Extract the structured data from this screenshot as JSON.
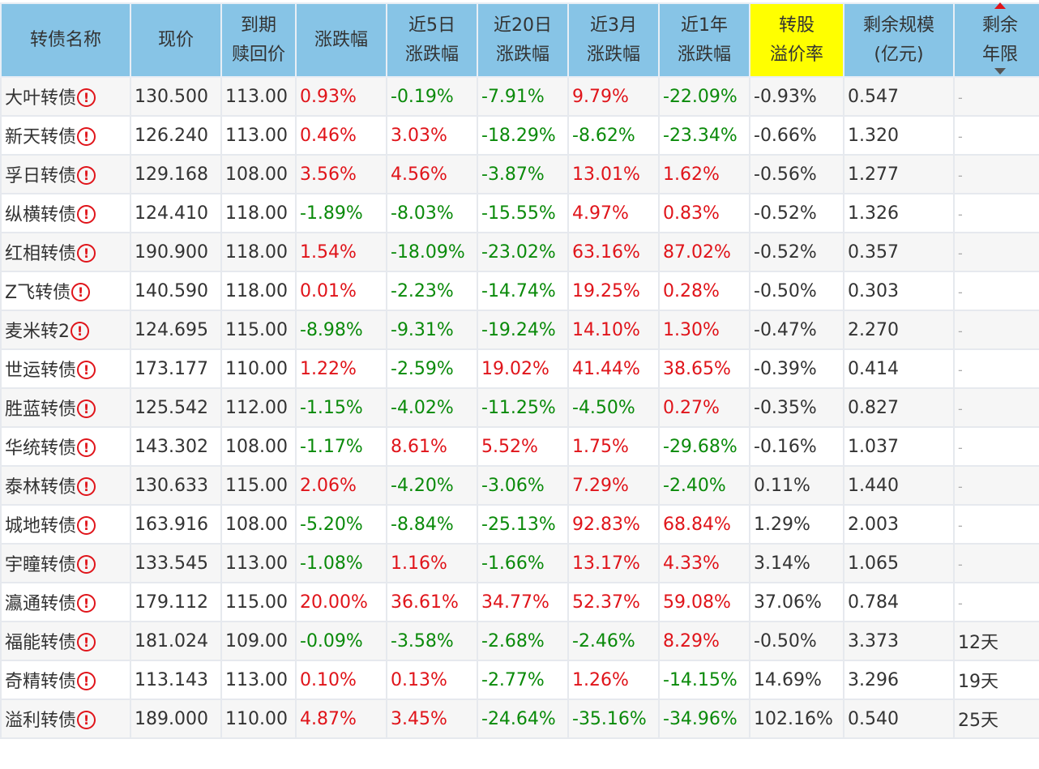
{
  "headers": [
    "转债名称",
    "现价",
    "到期\n赎回价",
    "涨跌幅",
    "近5日\n涨跌幅",
    "近20日\n涨跌幅",
    "近3月\n涨跌幅",
    "近1年\n涨跌幅",
    "转股\n溢价率",
    "剩余规模\n(亿元)",
    "剩余\n年限"
  ],
  "highlight_color": "#ffff00",
  "warn_icon": "!",
  "rows": [
    [
      "大叶转债",
      "130.500",
      "113.00",
      "0.93%",
      "-0.19%",
      "-7.91%",
      "9.79%",
      "-22.09%",
      "-0.93%",
      "0.547",
      "-"
    ],
    [
      "新天转债",
      "126.240",
      "113.00",
      "0.46%",
      "3.03%",
      "-18.29%",
      "-8.62%",
      "-23.34%",
      "-0.66%",
      "1.320",
      "-"
    ],
    [
      "孚日转债",
      "129.168",
      "108.00",
      "3.56%",
      "4.56%",
      "-3.87%",
      "13.01%",
      "1.62%",
      "-0.56%",
      "1.277",
      "-"
    ],
    [
      "纵横转债",
      "124.410",
      "118.00",
      "-1.89%",
      "-8.03%",
      "-15.55%",
      "4.97%",
      "0.83%",
      "-0.52%",
      "1.326",
      "-"
    ],
    [
      "红相转债",
      "190.900",
      "118.00",
      "1.54%",
      "-18.09%",
      "-23.02%",
      "63.16%",
      "87.02%",
      "-0.52%",
      "0.357",
      "-"
    ],
    [
      "Z飞转债",
      "140.590",
      "118.00",
      "0.01%",
      "-2.23%",
      "-14.74%",
      "19.25%",
      "0.28%",
      "-0.50%",
      "0.303",
      "-"
    ],
    [
      "麦米转2",
      "124.695",
      "115.00",
      "-8.98%",
      "-9.31%",
      "-19.24%",
      "14.10%",
      "1.30%",
      "-0.47%",
      "2.270",
      "-"
    ],
    [
      "世运转债",
      "173.177",
      "110.00",
      "1.22%",
      "-2.59%",
      "19.02%",
      "41.44%",
      "38.65%",
      "-0.39%",
      "0.414",
      "-"
    ],
    [
      "胜蓝转债",
      "125.542",
      "112.00",
      "-1.15%",
      "-4.02%",
      "-11.25%",
      "-4.50%",
      "0.27%",
      "-0.35%",
      "0.827",
      "-"
    ],
    [
      "华统转债",
      "143.302",
      "108.00",
      "-1.17%",
      "8.61%",
      "5.52%",
      "1.75%",
      "-29.68%",
      "-0.16%",
      "1.037",
      "-"
    ],
    [
      "泰林转债",
      "130.633",
      "115.00",
      "2.06%",
      "-4.20%",
      "-3.06%",
      "7.29%",
      "-2.40%",
      "0.11%",
      "1.440",
      "-"
    ],
    [
      "城地转债",
      "163.916",
      "108.00",
      "-5.20%",
      "-8.84%",
      "-25.13%",
      "92.83%",
      "68.84%",
      "1.29%",
      "2.003",
      "-"
    ],
    [
      "宇瞳转债",
      "133.545",
      "113.00",
      "-1.08%",
      "1.16%",
      "-1.66%",
      "13.17%",
      "4.33%",
      "3.14%",
      "1.065",
      "-"
    ],
    [
      "瀛通转债",
      "179.112",
      "115.00",
      "20.00%",
      "36.61%",
      "34.77%",
      "52.37%",
      "59.08%",
      "37.06%",
      "0.784",
      "-"
    ],
    [
      "福能转债",
      "181.024",
      "109.00",
      "-0.09%",
      "-3.58%",
      "-2.68%",
      "-2.46%",
      "8.29%",
      "-0.50%",
      "3.373",
      "12天"
    ],
    [
      "奇精转债",
      "113.143",
      "113.00",
      "0.10%",
      "0.13%",
      "-2.77%",
      "1.26%",
      "-14.15%",
      "14.69%",
      "3.296",
      "19天"
    ],
    [
      "溢利转债",
      "189.000",
      "110.00",
      "4.87%",
      "3.45%",
      "-24.64%",
      "-35.16%",
      "-34.96%",
      "102.16%",
      "0.540",
      "25天"
    ]
  ]
}
